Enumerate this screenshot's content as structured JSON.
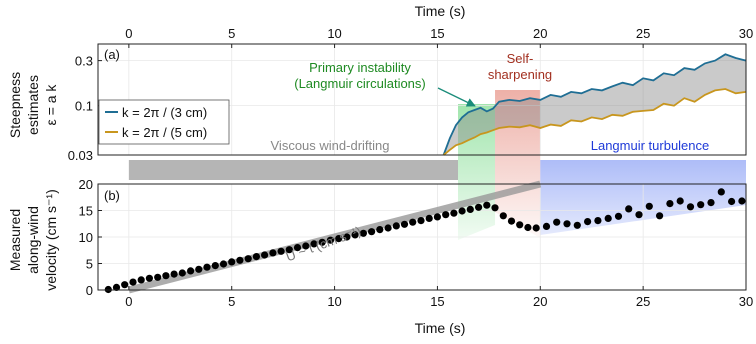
{
  "chart_data": {
    "type": "line",
    "x_axis": {
      "label": "Time (s)",
      "range": [
        -1.5,
        30
      ],
      "ticks": [
        0,
        5,
        10,
        15,
        20,
        25,
        30
      ],
      "tick_labels": [
        "0",
        "5",
        "10",
        "15",
        "20",
        "25",
        "30"
      ]
    },
    "panels": [
      {
        "tag": "(a)",
        "ylabel": [
          "Steepness",
          "estimates",
          "ε = a k"
        ],
        "y_scale": "log",
        "ylim": [
          0.03,
          0.45
        ],
        "y_ticks": [
          0.03,
          0.1,
          0.3
        ],
        "y_tick_labels": [
          "0.03",
          "0.1",
          "0.3"
        ],
        "legend_position": "left",
        "series": [
          {
            "name": "k = 2π / (3 cm)",
            "color": "#1f6e94",
            "x": [
              15.3,
              15.6,
              15.9,
              16.2,
              16.5,
              16.8,
              17.1,
              17.4,
              17.7,
              18.0,
              18.5,
              19.0,
              19.5,
              20.0,
              20.5,
              21.0,
              21.5,
              22.0,
              22.5,
              23.0,
              23.5,
              24.0,
              24.5,
              25.0,
              25.5,
              26.0,
              26.5,
              27.0,
              27.5,
              28.0,
              28.5,
              29.0,
              29.5,
              30.0
            ],
            "y": [
              0.03,
              0.045,
              0.062,
              0.075,
              0.085,
              0.09,
              0.095,
              0.087,
              0.093,
              0.11,
              0.115,
              0.112,
              0.12,
              0.115,
              0.13,
              0.124,
              0.14,
              0.135,
              0.15,
              0.145,
              0.16,
              0.175,
              0.165,
              0.195,
              0.185,
              0.22,
              0.21,
              0.25,
              0.24,
              0.28,
              0.3,
              0.35,
              0.32,
              0.3
            ]
          },
          {
            "name": "k = 2π / (5 cm)",
            "color": "#c8961e",
            "x": [
              15.3,
              15.6,
              15.9,
              16.2,
              16.5,
              16.8,
              17.1,
              17.4,
              17.7,
              18.0,
              18.5,
              19.0,
              19.5,
              20.0,
              20.5,
              21.0,
              21.5,
              22.0,
              22.5,
              23.0,
              23.5,
              24.0,
              24.5,
              25.0,
              25.5,
              26.0,
              26.5,
              27.0,
              27.5,
              28.0,
              28.5,
              29.0,
              29.5,
              30.0
            ],
            "y": [
              0.03,
              0.034,
              0.038,
              0.04,
              0.043,
              0.046,
              0.05,
              0.052,
              0.055,
              0.058,
              0.06,
              0.059,
              0.062,
              0.058,
              0.063,
              0.061,
              0.07,
              0.068,
              0.075,
              0.072,
              0.08,
              0.078,
              0.086,
              0.088,
              0.09,
              0.105,
              0.1,
              0.12,
              0.11,
              0.13,
              0.145,
              0.15,
              0.135,
              0.14
            ]
          }
        ]
      },
      {
        "tag": "(b)",
        "ylabel": [
          "Measured",
          "along-wind",
          "velocity (cm s⁻¹)"
        ],
        "ylim": [
          0,
          20
        ],
        "y_ticks": [
          0,
          5,
          10,
          15,
          20
        ],
        "y_tick_labels": [
          "0",
          "5",
          "10",
          "15",
          "20"
        ],
        "series": [
          {
            "name": "",
            "type": "scatter",
            "color": "#000000",
            "x": [
              -1.0,
              -0.6,
              -0.2,
              0.2,
              0.6,
              1.0,
              1.4,
              1.8,
              2.2,
              2.6,
              3.0,
              3.4,
              3.8,
              4.2,
              4.6,
              5.0,
              5.4,
              5.8,
              6.2,
              6.6,
              7.0,
              7.4,
              7.8,
              8.2,
              8.6,
              9.0,
              9.4,
              9.8,
              10.2,
              10.6,
              11.0,
              11.4,
              11.8,
              12.2,
              12.6,
              13.0,
              13.4,
              13.8,
              14.2,
              14.6,
              15.0,
              15.4,
              15.8,
              16.2,
              16.6,
              17.0,
              17.4,
              17.8,
              18.2,
              18.6,
              19.0,
              19.4,
              19.8,
              20.3,
              20.8,
              21.3,
              21.8,
              22.3,
              22.8,
              23.3,
              23.8,
              24.3,
              24.8,
              25.3,
              25.8,
              26.3,
              26.8,
              27.3,
              27.8,
              28.3,
              28.8,
              29.3,
              29.8
            ],
            "y": [
              0.1,
              0.5,
              1.0,
              1.5,
              1.9,
              2.2,
              2.4,
              2.7,
              3.0,
              3.2,
              3.6,
              3.9,
              4.3,
              4.6,
              4.9,
              5.3,
              5.6,
              5.9,
              6.3,
              6.6,
              7.0,
              7.3,
              7.6,
              8.0,
              8.3,
              8.7,
              9.0,
              9.4,
              9.7,
              10.0,
              10.4,
              10.7,
              11.0,
              11.4,
              11.7,
              12.1,
              12.4,
              12.8,
              13.1,
              13.5,
              13.8,
              14.2,
              14.5,
              14.9,
              15.2,
              15.6,
              16.0,
              15.5,
              14.0,
              13.0,
              12.3,
              11.8,
              11.7,
              12.0,
              12.8,
              12.5,
              12.2,
              12.9,
              13.1,
              13.5,
              13.9,
              15.3,
              14.2,
              15.8,
              14.0,
              16.3,
              16.8,
              15.7,
              16.1,
              16.5,
              18.5,
              16.7,
              16.8
            ]
          }
        ],
        "reference_line": {
          "label": "U ~ t (cm s⁻¹)",
          "x": [
            0,
            20
          ],
          "y": [
            0,
            20
          ]
        }
      }
    ],
    "regions": [
      {
        "label": "Viscous wind-drifting",
        "x": [
          0,
          16
        ],
        "color": "#b5b5b5"
      },
      {
        "label": "Primary instability\n(Langmuir circulations)",
        "x": [
          16,
          17.8
        ],
        "color": "#55d06a"
      },
      {
        "label": "Self-\nsharpening",
        "x": [
          17.8,
          20
        ],
        "color": "#e07060"
      },
      {
        "label": "Langmuir turbulence",
        "x": [
          20,
          30
        ],
        "color": "#6b86f2"
      }
    ],
    "region_label_colors": [
      "#888888",
      "#1e8a22",
      "#a23020",
      "#1f3ad8"
    ]
  }
}
